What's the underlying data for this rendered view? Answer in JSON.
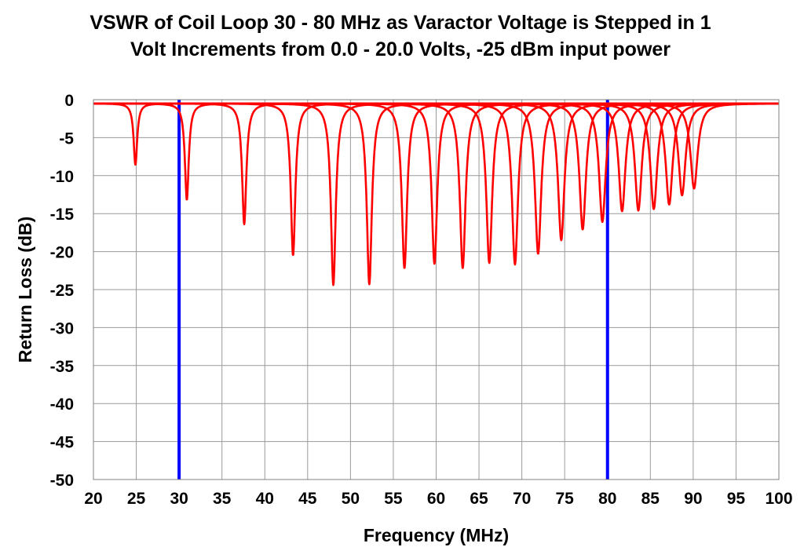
{
  "chart_data": {
    "type": "line",
    "title": "VSWR of Coil Loop 30 - 80 MHz as Varactor Voltage is Stepped in 1 Volt Increments from 0.0 - 20.0 Volts, -25 dBm input power",
    "xlabel": "Frequency (MHz)",
    "ylabel": "Return Loss (dB)",
    "xlim": [
      20,
      100
    ],
    "ylim": [
      -50,
      0
    ],
    "x_ticks": [
      20,
      25,
      30,
      35,
      40,
      45,
      50,
      55,
      60,
      65,
      70,
      75,
      80,
      85,
      90,
      95,
      100
    ],
    "y_ticks": [
      0,
      -5,
      -10,
      -15,
      -20,
      -25,
      -30,
      -35,
      -40,
      -45,
      -50
    ],
    "grid": true,
    "baseline_db": -0.5,
    "series_color": "#ff0000",
    "marker_color": "#0000ff",
    "vertical_markers": [
      30,
      80
    ],
    "resonances": [
      {
        "freq_mhz": 24.9,
        "min_db": -8.6
      },
      {
        "freq_mhz": 30.9,
        "min_db": -13.2
      },
      {
        "freq_mhz": 37.6,
        "min_db": -16.4
      },
      {
        "freq_mhz": 43.3,
        "min_db": -20.5
      },
      {
        "freq_mhz": 48.0,
        "min_db": -24.4
      },
      {
        "freq_mhz": 52.2,
        "min_db": -24.3
      },
      {
        "freq_mhz": 56.3,
        "min_db": -22.2
      },
      {
        "freq_mhz": 59.8,
        "min_db": -21.6
      },
      {
        "freq_mhz": 63.1,
        "min_db": -22.2
      },
      {
        "freq_mhz": 66.2,
        "min_db": -21.5
      },
      {
        "freq_mhz": 69.2,
        "min_db": -21.7
      },
      {
        "freq_mhz": 71.9,
        "min_db": -20.3
      },
      {
        "freq_mhz": 74.6,
        "min_db": -18.5
      },
      {
        "freq_mhz": 77.1,
        "min_db": -17.1
      },
      {
        "freq_mhz": 79.4,
        "min_db": -16.1
      },
      {
        "freq_mhz": 81.7,
        "min_db": -14.7
      },
      {
        "freq_mhz": 83.6,
        "min_db": -14.6
      },
      {
        "freq_mhz": 85.4,
        "min_db": -14.4
      },
      {
        "freq_mhz": 87.2,
        "min_db": -13.8
      },
      {
        "freq_mhz": 88.7,
        "min_db": -12.6
      },
      {
        "freq_mhz": 90.1,
        "min_db": -11.7
      }
    ]
  }
}
